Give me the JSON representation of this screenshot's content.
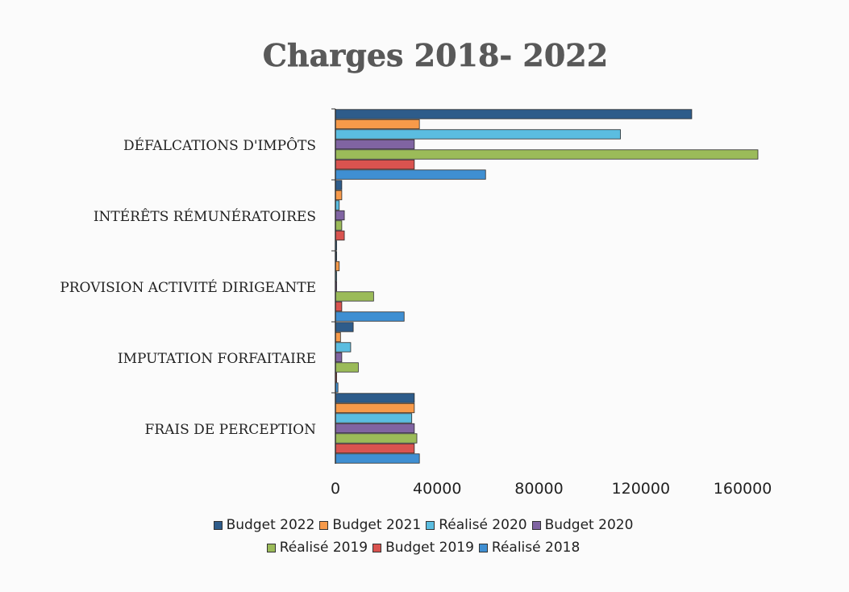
{
  "chart_data": {
    "type": "bar",
    "orientation": "horizontal",
    "title": "Charges 2018- 2022",
    "xlim": [
      0,
      180000
    ],
    "x_ticks": [
      0,
      40000,
      80000,
      120000,
      160000
    ],
    "x_tick_labels": [
      "0",
      "40000",
      "80000",
      "120000",
      "160000"
    ],
    "grid": false,
    "legend_position": "bottom",
    "categories": [
      "DÉFALCATIONS D'IMPÔTS",
      "INTÉRÊTS RÉMUNÉRATOIRES",
      "PROVISION ACTIVITÉ DIRIGEANTE",
      "IMPUTATION FORFAITAIRE",
      "FRAIS DE PERCEPTION"
    ],
    "series": [
      {
        "name": "Budget 2022",
        "color": "#2e5c8a",
        "values": [
          140000,
          2500,
          500,
          7000,
          31000
        ]
      },
      {
        "name": "Budget 2021",
        "color": "#f79a4a",
        "values": [
          33000,
          2500,
          1500,
          2000,
          31000
        ]
      },
      {
        "name": "Réalisé 2020",
        "color": "#5bbde0",
        "values": [
          112000,
          1500,
          500,
          6000,
          30000
        ]
      },
      {
        "name": "Budget 2020",
        "color": "#8064a2",
        "values": [
          31000,
          3500,
          500,
          2500,
          31000
        ]
      },
      {
        "name": "Réalisé 2019",
        "color": "#9bbb59",
        "values": [
          166000,
          2500,
          15000,
          9000,
          32000
        ]
      },
      {
        "name": "Budget 2019",
        "color": "#d9534f",
        "values": [
          31000,
          3500,
          2500,
          500,
          31000
        ]
      },
      {
        "name": "Réalisé 2018",
        "color": "#3f8fd2",
        "values": [
          59000,
          500,
          27000,
          1000,
          33000
        ]
      }
    ]
  }
}
